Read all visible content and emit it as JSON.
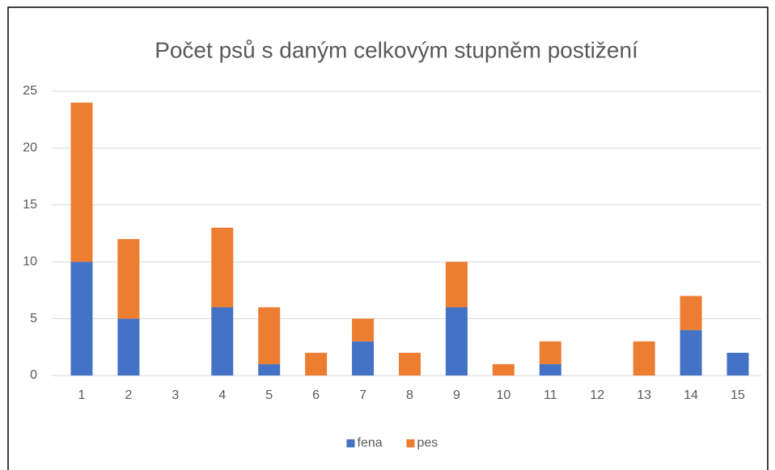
{
  "chart_data": {
    "type": "bar",
    "stacked": true,
    "title": "Počet psů s daným celkovým stupněm postižení",
    "categories": [
      "1",
      "2",
      "3",
      "4",
      "5",
      "6",
      "7",
      "8",
      "9",
      "10",
      "11",
      "12",
      "13",
      "14",
      "15"
    ],
    "series": [
      {
        "name": "fena",
        "color": "#4472c4",
        "values": [
          10,
          5,
          0,
          6,
          1,
          0,
          3,
          0,
          6,
          0,
          1,
          0,
          0,
          4,
          2
        ]
      },
      {
        "name": "pes",
        "color": "#ed7d31",
        "values": [
          14,
          7,
          0,
          7,
          5,
          2,
          2,
          2,
          4,
          1,
          2,
          0,
          3,
          3,
          0
        ]
      }
    ],
    "ylim": [
      0,
      25
    ],
    "yticks": [
      0,
      5,
      10,
      15,
      20,
      25
    ],
    "grid": true,
    "legend": "bottom"
  }
}
